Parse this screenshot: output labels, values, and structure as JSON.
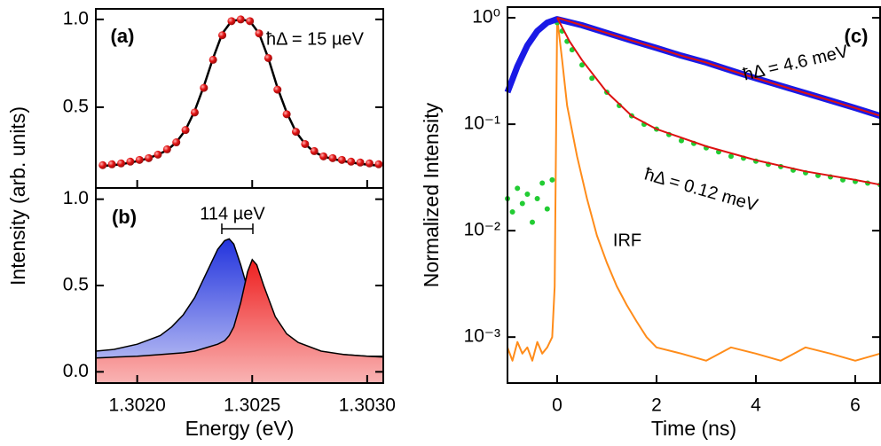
{
  "chart_data": [
    {
      "type": "scatter",
      "panel_label": "(a)",
      "y_label": "Intensity (arb. units)",
      "annotation": "ħΔ = 15 µeV",
      "xlim": [
        1.30182,
        1.30307
      ],
      "ylim": [
        0.04,
        1.06
      ],
      "yticks": [
        {
          "value": 1,
          "label": "1.0"
        },
        0.5
      ],
      "x": [
        1.30185,
        1.30189,
        1.30193,
        1.30197,
        1.30201,
        1.30205,
        1.30209,
        1.30213,
        1.30217,
        1.30221,
        1.30225,
        1.30229,
        1.30233,
        1.30237,
        1.30241,
        1.30245,
        1.30249,
        1.30253,
        1.30257,
        1.30261,
        1.30265,
        1.30269,
        1.30273,
        1.30277,
        1.30281,
        1.30285,
        1.30289,
        1.30293,
        1.30297,
        1.30301,
        1.30305
      ],
      "series": [
        {
          "color": "#e01010",
          "style": "dots",
          "values": [
            0.17,
            0.175,
            0.18,
            0.19,
            0.2,
            0.21,
            0.23,
            0.26,
            0.3,
            0.37,
            0.47,
            0.61,
            0.77,
            0.91,
            0.99,
            1.0,
            0.99,
            0.92,
            0.78,
            0.6,
            0.46,
            0.36,
            0.29,
            0.25,
            0.22,
            0.21,
            0.2,
            0.19,
            0.185,
            0.18,
            0.175
          ]
        },
        {
          "color": "#000000",
          "style": "line",
          "values": [
            0.165,
            0.17,
            0.175,
            0.185,
            0.195,
            0.21,
            0.23,
            0.255,
            0.3,
            0.37,
            0.48,
            0.62,
            0.78,
            0.92,
            0.99,
            1.0,
            0.99,
            0.92,
            0.78,
            0.61,
            0.47,
            0.36,
            0.29,
            0.245,
            0.22,
            0.205,
            0.195,
            0.185,
            0.178,
            0.172,
            0.168
          ]
        }
      ]
    },
    {
      "type": "area",
      "panel_label": "(b)",
      "x_label": "Energy (eV)",
      "annotation": "114 µeV",
      "xlim": [
        1.30182,
        1.30307
      ],
      "ylim": [
        -0.065,
        1.065
      ],
      "xticks": [
        {
          "value": 1.302,
          "label": "1.3020"
        },
        1.3025,
        {
          "value": 1.303,
          "label": "1.3030"
        }
      ],
      "yticks": [
        {
          "value": 1,
          "label": "1.0"
        },
        0.5,
        {
          "value": 0,
          "label": "0.0"
        }
      ],
      "x": [
        1.30182,
        1.3019,
        1.302,
        1.3021,
        1.30215,
        1.3022,
        1.30225,
        1.3023,
        1.30235,
        1.30238,
        1.3024,
        1.30242,
        1.30245,
        1.30248,
        1.3025,
        1.30252,
        1.30255,
        1.3026,
        1.30265,
        1.3027,
        1.3028,
        1.3029,
        1.303,
        1.30307
      ],
      "series": [
        {
          "color": "#2a3be0",
          "values": [
            0.12,
            0.13,
            0.16,
            0.21,
            0.26,
            0.33,
            0.43,
            0.57,
            0.71,
            0.76,
            0.77,
            0.74,
            0.62,
            0.48,
            0.4,
            0.33,
            0.26,
            0.19,
            0.15,
            0.13,
            0.11,
            0.1,
            0.09,
            0.09
          ]
        },
        {
          "color": "#f03030",
          "values": [
            0.08,
            0.085,
            0.09,
            0.1,
            0.105,
            0.11,
            0.12,
            0.14,
            0.16,
            0.18,
            0.21,
            0.26,
            0.4,
            0.58,
            0.65,
            0.62,
            0.5,
            0.32,
            0.22,
            0.17,
            0.12,
            0.1,
            0.09,
            0.085
          ]
        }
      ]
    },
    {
      "type": "line",
      "panel_label": "(c)",
      "x_label": "Time (ns)",
      "y_label": "Normalized Intensity",
      "log_y": true,
      "annotations": [
        "ħΔ = 4.6 meV",
        "ħΔ = 0.12 meV",
        "IRF"
      ],
      "xlim": [
        -1,
        6.5
      ],
      "ylim": [
        0.00037,
        1.26
      ],
      "xticks": [
        0,
        2,
        4,
        6
      ],
      "yticks": [
        {
          "value": 1,
          "label": "10⁰"
        },
        {
          "value": 0.1,
          "label": "10⁻¹"
        },
        {
          "value": 0.01,
          "label": "10⁻²"
        },
        {
          "value": 0.001,
          "label": "10⁻³"
        }
      ],
      "series": [
        {
          "color": "#ff8c1a",
          "style": "line",
          "x": [
            -1,
            -0.9,
            -0.8,
            -0.7,
            -0.6,
            -0.5,
            -0.4,
            -0.3,
            -0.2,
            -0.1,
            -0.05,
            0,
            0.1,
            0.2,
            0.4,
            0.6,
            0.8,
            1,
            1.2,
            1.4,
            1.6,
            1.8,
            2,
            2.5,
            3,
            3.5,
            4,
            4.5,
            5,
            5.5,
            6,
            6.5
          ],
          "values": [
            0.0008,
            0.0006,
            0.0009,
            0.0007,
            0.0008,
            0.0006,
            0.0009,
            0.0007,
            0.0008,
            0.001,
            0.003,
            1,
            0.4,
            0.15,
            0.05,
            0.02,
            0.009,
            0.005,
            0.003,
            0.002,
            0.0014,
            0.001,
            0.0008,
            0.0007,
            0.0006,
            0.0008,
            0.0007,
            0.0006,
            0.0008,
            0.0007,
            0.0006,
            0.0007
          ]
        },
        {
          "color": "#22cc33",
          "style": "dots",
          "x": [
            -1,
            -0.9,
            -0.8,
            -0.7,
            -0.6,
            -0.5,
            -0.4,
            -0.3,
            -0.2,
            -0.1,
            0,
            0.1,
            0.2,
            0.3,
            0.5,
            0.7,
            1,
            1.25,
            1.5,
            1.75,
            2,
            2.25,
            2.5,
            2.75,
            3,
            3.25,
            3.5,
            3.75,
            4,
            4.25,
            4.5,
            4.75,
            5,
            5.25,
            5.5,
            5.75,
            6,
            6.25,
            6.5
          ],
          "values": [
            0.02,
            0.015,
            0.025,
            0.018,
            0.022,
            0.012,
            0.02,
            0.028,
            0.016,
            0.03,
            0.9,
            0.75,
            0.6,
            0.5,
            0.36,
            0.27,
            0.2,
            0.15,
            0.12,
            0.1,
            0.09,
            0.08,
            0.07,
            0.066,
            0.06,
            0.055,
            0.05,
            0.048,
            0.045,
            0.042,
            0.04,
            0.037,
            0.035,
            0.033,
            0.032,
            0.03,
            0.029,
            0.028,
            0.027
          ]
        },
        {
          "color": "#1a1ae6",
          "style": "band",
          "x": [
            -1,
            -0.8,
            -0.6,
            -0.4,
            -0.2,
            0,
            0.5,
            1,
            1.5,
            2,
            2.5,
            3,
            3.5,
            4,
            4.5,
            5,
            5.5,
            6,
            6.5
          ],
          "values": [
            0.2,
            0.35,
            0.55,
            0.75,
            0.9,
            0.97,
            0.85,
            0.72,
            0.61,
            0.52,
            0.44,
            0.38,
            0.32,
            0.27,
            0.23,
            0.196,
            0.167,
            0.142,
            0.12
          ]
        },
        {
          "color": "#dd1111",
          "style": "line",
          "x": [
            0,
            0.5,
            1,
            1.5,
            2,
            2.5,
            3,
            3.5,
            4,
            4.5,
            5,
            5.5,
            6,
            6.5
          ],
          "values": [
            1,
            0.85,
            0.72,
            0.61,
            0.52,
            0.44,
            0.38,
            0.32,
            0.27,
            0.23,
            0.196,
            0.167,
            0.142,
            0.12
          ]
        },
        {
          "color": "#dd1111",
          "style": "line",
          "x": [
            0,
            0.25,
            0.5,
            1,
            1.5,
            2,
            3,
            4,
            5,
            6,
            6.5
          ],
          "values": [
            1,
            0.6,
            0.4,
            0.2,
            0.12,
            0.09,
            0.062,
            0.046,
            0.036,
            0.03,
            0.027
          ]
        }
      ]
    }
  ]
}
